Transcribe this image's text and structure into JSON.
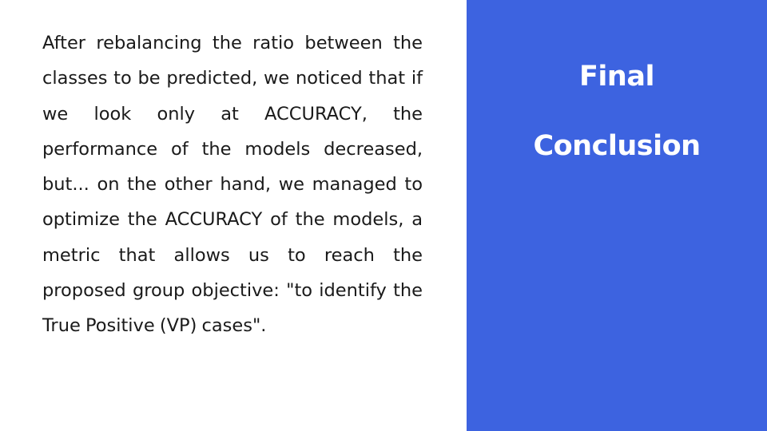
{
  "slide": {
    "body_text": "After rebalancing the ratio between the classes to be predicted, we noticed that if we look only at ACCURACY, the performance of the models decreased, but... on the other hand, we managed to optimize the ACCURACY of the models, a metric that allows us to reach the proposed group objective: \"to identify the True Positive (VP) cases\".",
    "title_line1": "Final",
    "title_line2": "Conclusion",
    "panel_color": "#3d63e0"
  }
}
